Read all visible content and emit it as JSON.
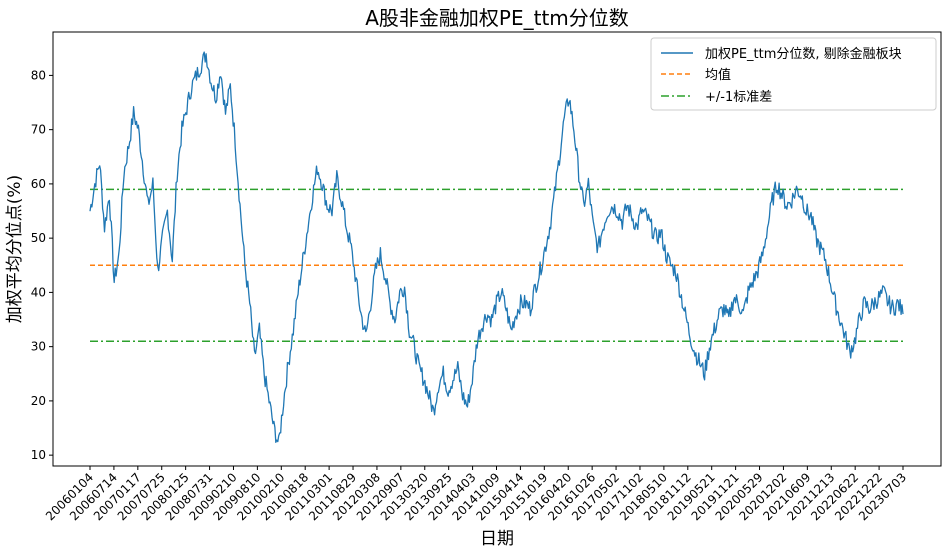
{
  "chart_data": {
    "type": "line",
    "title": "A股非金融加权PE_ttm分位数",
    "xlabel": "日期",
    "ylabel": "加权平均分位点(%)",
    "ylim": [
      8,
      88
    ],
    "yticks": [
      10,
      20,
      30,
      40,
      50,
      60,
      70,
      80
    ],
    "ytick_labels": [
      "10",
      "20",
      "30",
      "40",
      "50",
      "60",
      "70",
      "80"
    ],
    "xtick_labels": [
      "20060104",
      "20060714",
      "20070117",
      "20070725",
      "20080125",
      "20080731",
      "20090210",
      "20090810",
      "20100210",
      "20100818",
      "20110301",
      "20110829",
      "20120308",
      "20120907",
      "20130320",
      "20130925",
      "20140403",
      "20141009",
      "20150414",
      "20151019",
      "20160420",
      "20161026",
      "20170502",
      "20171102",
      "20180510",
      "20181112",
      "20190521",
      "20191121",
      "20200529",
      "20201202",
      "20210609",
      "20211213",
      "20220622",
      "20221222",
      "20230703"
    ],
    "legend_position": "top-right",
    "mean": 45,
    "upper_band": 59,
    "lower_band": 31,
    "series": [
      {
        "name": "加权PE_ttm分位数, 剔除金融板块",
        "color": "#1f77b4",
        "style": "solid",
        "values": [
          55,
          60,
          64,
          52,
          58,
          42,
          47,
          62,
          67,
          73,
          70,
          63,
          56,
          60,
          44,
          50,
          55,
          46,
          62,
          70,
          74,
          78,
          80,
          82,
          84,
          79,
          76,
          81,
          73,
          78,
          68,
          56,
          45,
          38,
          28,
          33,
          25,
          20,
          15,
          12,
          20,
          27,
          33,
          40,
          46,
          52,
          58,
          63,
          60,
          56,
          55,
          61,
          57,
          52,
          48,
          42,
          36,
          32,
          38,
          44,
          47,
          43,
          38,
          35,
          40,
          41,
          33,
          30,
          26,
          24,
          21,
          18,
          23,
          25,
          22,
          24,
          26,
          21,
          19,
          24,
          31,
          34,
          36,
          35,
          38,
          40,
          37,
          33,
          36,
          38,
          38,
          37,
          41,
          44,
          48,
          52,
          58,
          65,
          72,
          76,
          70,
          62,
          56,
          60,
          52,
          48,
          52,
          55,
          56,
          55,
          53,
          56,
          54,
          52,
          55,
          54,
          52,
          50,
          51,
          47,
          45,
          44,
          40,
          36,
          32,
          29,
          27,
          25,
          30,
          33,
          36,
          37,
          35,
          39,
          38,
          36,
          40,
          42,
          44,
          47,
          52,
          57,
          60,
          58,
          56,
          57,
          59,
          58,
          55,
          54,
          50,
          48,
          46,
          42,
          38,
          35,
          32,
          29,
          31,
          35,
          38,
          37,
          38,
          39,
          40,
          38,
          37,
          38,
          36
        ]
      },
      {
        "name": "均值",
        "color": "#ff7f0e",
        "style": "dashed"
      },
      {
        "name": "+/-1标准差",
        "color": "#2ca02c",
        "style": "dashdot"
      }
    ]
  }
}
